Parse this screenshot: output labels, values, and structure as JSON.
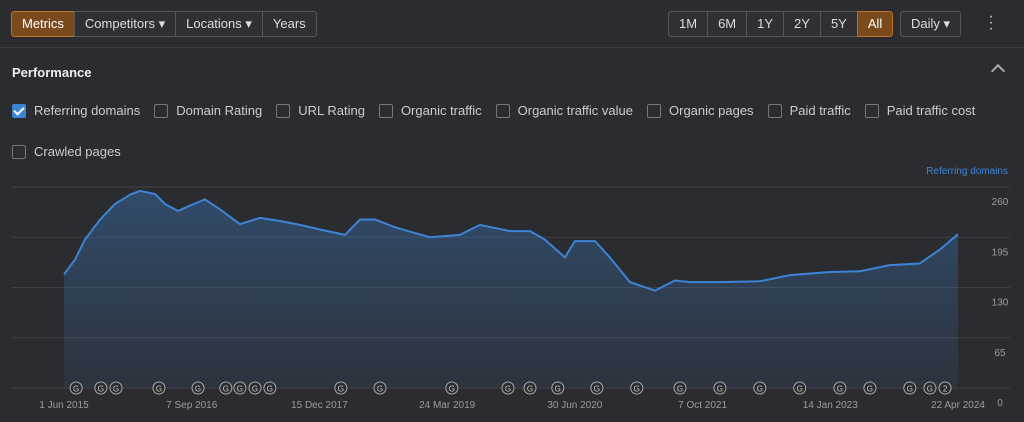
{
  "toolbar": {
    "tabs": [
      {
        "label": "Metrics",
        "active": true
      },
      {
        "label": "Competitors",
        "dropdown": true
      },
      {
        "label": "Locations",
        "dropdown": true
      },
      {
        "label": "Years"
      }
    ],
    "ranges": [
      {
        "label": "1M"
      },
      {
        "label": "6M"
      },
      {
        "label": "1Y"
      },
      {
        "label": "2Y"
      },
      {
        "label": "5Y"
      },
      {
        "label": "All",
        "active": true
      }
    ],
    "interval": "Daily"
  },
  "panel": {
    "title": "Performance",
    "metrics": [
      {
        "label": "Referring domains",
        "checked": true
      },
      {
        "label": "Domain Rating",
        "checked": false
      },
      {
        "label": "URL Rating",
        "checked": false
      },
      {
        "label": "Organic traffic",
        "checked": false
      },
      {
        "label": "Organic traffic value",
        "checked": false
      },
      {
        "label": "Organic pages",
        "checked": false
      },
      {
        "label": "Paid traffic",
        "checked": false
      },
      {
        "label": "Paid traffic cost",
        "checked": false
      },
      {
        "label": "Crawled pages",
        "checked": false
      }
    ]
  },
  "chart_data": {
    "type": "area",
    "ylabel": "Referring domains",
    "color": "#3d84d6",
    "x": [
      "2015-06-01",
      "2015-07-11",
      "2015-08-16",
      "2015-10-10",
      "2015-12-03",
      "2016-01-27",
      "2016-03-03",
      "2016-04-27",
      "2016-06-02",
      "2016-07-19",
      "2016-09-01",
      "2016-10-25",
      "2016-12-19",
      "2017-03-01",
      "2017-05-13",
      "2017-07-25",
      "2017-10-05",
      "2017-12-17",
      "2018-03-18",
      "2018-05-11",
      "2018-07-05",
      "2018-09-15",
      "2019-01-20",
      "2019-05-09",
      "2019-07-21",
      "2019-11-07",
      "2020-01-19",
      "2020-03-13",
      "2020-05-25",
      "2020-06-30",
      "2020-09-11",
      "2020-11-04",
      "2021-01-16",
      "2021-04-17",
      "2021-06-28",
      "2021-08-22",
      "2021-12-09",
      "2022-05-03",
      "2022-08-20",
      "2023-01-12",
      "2023-05-01",
      "2023-08-18",
      "2023-12-05",
      "2024-02-16",
      "2024-04-22"
    ],
    "values": [
      147,
      166,
      192,
      218,
      238,
      250,
      255,
      251,
      238,
      229,
      236,
      244,
      231,
      212,
      220,
      216,
      211,
      205,
      198,
      218,
      218,
      208,
      195,
      198,
      211,
      203,
      203,
      192,
      169,
      190,
      190,
      169,
      137,
      126,
      139,
      137,
      137,
      138,
      146,
      150,
      151,
      159,
      161,
      179,
      199
    ],
    "xlim": [
      "2015-06-01",
      "2024-04-22"
    ],
    "xticks": [
      {
        "value": "2015-06-01",
        "label": "1 Jun 2015"
      },
      {
        "value": "2016-09-07",
        "label": "7 Sep 2016"
      },
      {
        "value": "2017-12-15",
        "label": "15 Dec 2017"
      },
      {
        "value": "2019-03-24",
        "label": "24 Mar 2019"
      },
      {
        "value": "2020-06-30",
        "label": "30 Jun 2020"
      },
      {
        "value": "2021-10-07",
        "label": "7 Oct 2021"
      },
      {
        "value": "2023-01-14",
        "label": "14 Jan 2023"
      },
      {
        "value": "2024-04-22",
        "label": "22 Apr 2024"
      }
    ],
    "ylim": [
      0,
      260
    ],
    "yticks": [
      0,
      65,
      130,
      195,
      260
    ],
    "grid": true,
    "annotations": [
      {
        "x": "2015-07-15",
        "label": "G"
      },
      {
        "x": "2015-10-13",
        "label": "G"
      },
      {
        "x": "2015-12-07",
        "label": "G"
      },
      {
        "x": "2016-05-11",
        "label": "G"
      },
      {
        "x": "2016-09-30",
        "label": "G"
      },
      {
        "x": "2017-01-09",
        "label": "G"
      },
      {
        "x": "2017-03-01",
        "label": "G"
      },
      {
        "x": "2017-04-25",
        "label": "G"
      },
      {
        "x": "2017-06-18",
        "label": "G"
      },
      {
        "x": "2018-03-03",
        "label": "G"
      },
      {
        "x": "2018-07-23",
        "label": "G"
      },
      {
        "x": "2019-04-10",
        "label": "G"
      },
      {
        "x": "2019-10-31",
        "label": "G"
      },
      {
        "x": "2020-01-19",
        "label": "G"
      },
      {
        "x": "2020-04-29",
        "label": "G"
      },
      {
        "x": "2020-09-18",
        "label": "G"
      },
      {
        "x": "2021-02-10",
        "label": "G"
      },
      {
        "x": "2021-07-17",
        "label": "G"
      },
      {
        "x": "2021-12-09",
        "label": "G"
      },
      {
        "x": "2022-05-03",
        "label": "G"
      },
      {
        "x": "2022-09-25",
        "label": "G"
      },
      {
        "x": "2023-02-18",
        "label": "G"
      },
      {
        "x": "2023-06-07",
        "label": "G"
      },
      {
        "x": "2023-10-30",
        "label": "G"
      },
      {
        "x": "2024-01-11",
        "label": "G"
      },
      {
        "x": "2024-03-06",
        "label": "2"
      }
    ]
  }
}
